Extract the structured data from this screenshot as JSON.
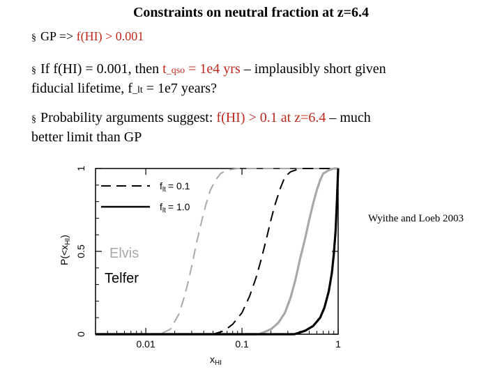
{
  "slide": {
    "title": "Constraints on neutral fraction at z=6.4",
    "bullet_symbol": "§",
    "b1_prefix": "GP => ",
    "b1_red": "f(HI) > 0.001",
    "b2_line1_prefix": "If f(HI) = 0.001, then ",
    "b2_red_t": "t",
    "b2_red_sub": "_qso",
    "b2_red_rest": " = 1e4 yrs",
    "b2_line1_suffix": " – implausibly short given",
    "b2_line2_prefix": "fiducial lifetime, f",
    "b2_line2_sub": "_lt",
    "b2_line2_suffix": " = 1e7 years?",
    "b3_line1_prefix": "Probability arguments suggest:  ",
    "b3_red": "f(HI) > 0.1 at z=6.4",
    "b3_line1_suffix": " – much",
    "b3_line2": "better limit than GP",
    "credit": "Wyithe and Loeb 2003"
  },
  "chart_data": {
    "type": "line",
    "xscale": "log",
    "xlim": [
      0.003,
      1.0
    ],
    "ylim": [
      0,
      1
    ],
    "xlabel_main": "x",
    "xlabel_sub": "HI",
    "ylabel_main": "P(<x",
    "ylabel_sub": "HI",
    "ylabel_close": ")",
    "xticks": [
      {
        "value": 0.01,
        "label": "0.01"
      },
      {
        "value": 0.1,
        "label": "0.1"
      },
      {
        "value": 1,
        "label": "1"
      }
    ],
    "yticks": [
      {
        "value": 0,
        "label": "0"
      },
      {
        "value": 0.5,
        "label": "0.5"
      },
      {
        "value": 1,
        "label": "1"
      }
    ],
    "legend": {
      "placement": "top-left",
      "entries": [
        {
          "style": "dashed",
          "label_main": "f",
          "label_sub": "lt",
          "label_rest": "= 0.1"
        },
        {
          "style": "solid",
          "label_main": "f",
          "label_sub": "lt",
          "label_rest": "= 1.0"
        }
      ]
    },
    "labels": [
      {
        "text": "Elvis",
        "color": "#a8a8a8"
      },
      {
        "text": "Telfer",
        "color": "#000000"
      }
    ],
    "series": [
      {
        "color": "#a8a8a8",
        "style": "dashed",
        "x": [
          0.003,
          0.014,
          0.018,
          0.022,
          0.025,
          0.028,
          0.031,
          0.034,
          0.038,
          0.042,
          0.047,
          0.053,
          0.06,
          0.07,
          0.09,
          0.12,
          0.2,
          0.5,
          1.0
        ],
        "y": [
          0.0,
          0.0,
          0.03,
          0.12,
          0.22,
          0.33,
          0.45,
          0.56,
          0.68,
          0.78,
          0.87,
          0.93,
          0.97,
          0.99,
          1.0,
          1.0,
          1.0,
          1.0,
          1.0
        ]
      },
      {
        "color": "#000000",
        "style": "dashed",
        "x": [
          0.003,
          0.05,
          0.065,
          0.08,
          0.1,
          0.12,
          0.14,
          0.16,
          0.18,
          0.2,
          0.22,
          0.25,
          0.28,
          0.32,
          0.4,
          0.6,
          1.0
        ],
        "y": [
          0.0,
          0.0,
          0.02,
          0.06,
          0.13,
          0.23,
          0.34,
          0.46,
          0.58,
          0.69,
          0.78,
          0.88,
          0.95,
          0.98,
          1.0,
          1.0,
          1.0
        ]
      },
      {
        "color": "#a8a8a8",
        "style": "solid",
        "x": [
          0.003,
          0.15,
          0.2,
          0.24,
          0.28,
          0.32,
          0.36,
          0.4,
          0.45,
          0.5,
          0.55,
          0.6,
          0.65,
          0.7,
          0.8,
          0.9,
          1.0
        ],
        "y": [
          0.0,
          0.0,
          0.03,
          0.07,
          0.13,
          0.22,
          0.33,
          0.45,
          0.57,
          0.69,
          0.79,
          0.87,
          0.93,
          0.97,
          0.99,
          1.0,
          1.0
        ]
      },
      {
        "color": "#000000",
        "style": "solid",
        "x": [
          0.003,
          0.35,
          0.45,
          0.55,
          0.65,
          0.72,
          0.8,
          0.86,
          0.9,
          0.94,
          0.97,
          1.0
        ],
        "y": [
          0.0,
          0.0,
          0.02,
          0.05,
          0.1,
          0.16,
          0.26,
          0.37,
          0.48,
          0.62,
          0.8,
          1.0
        ]
      }
    ]
  }
}
